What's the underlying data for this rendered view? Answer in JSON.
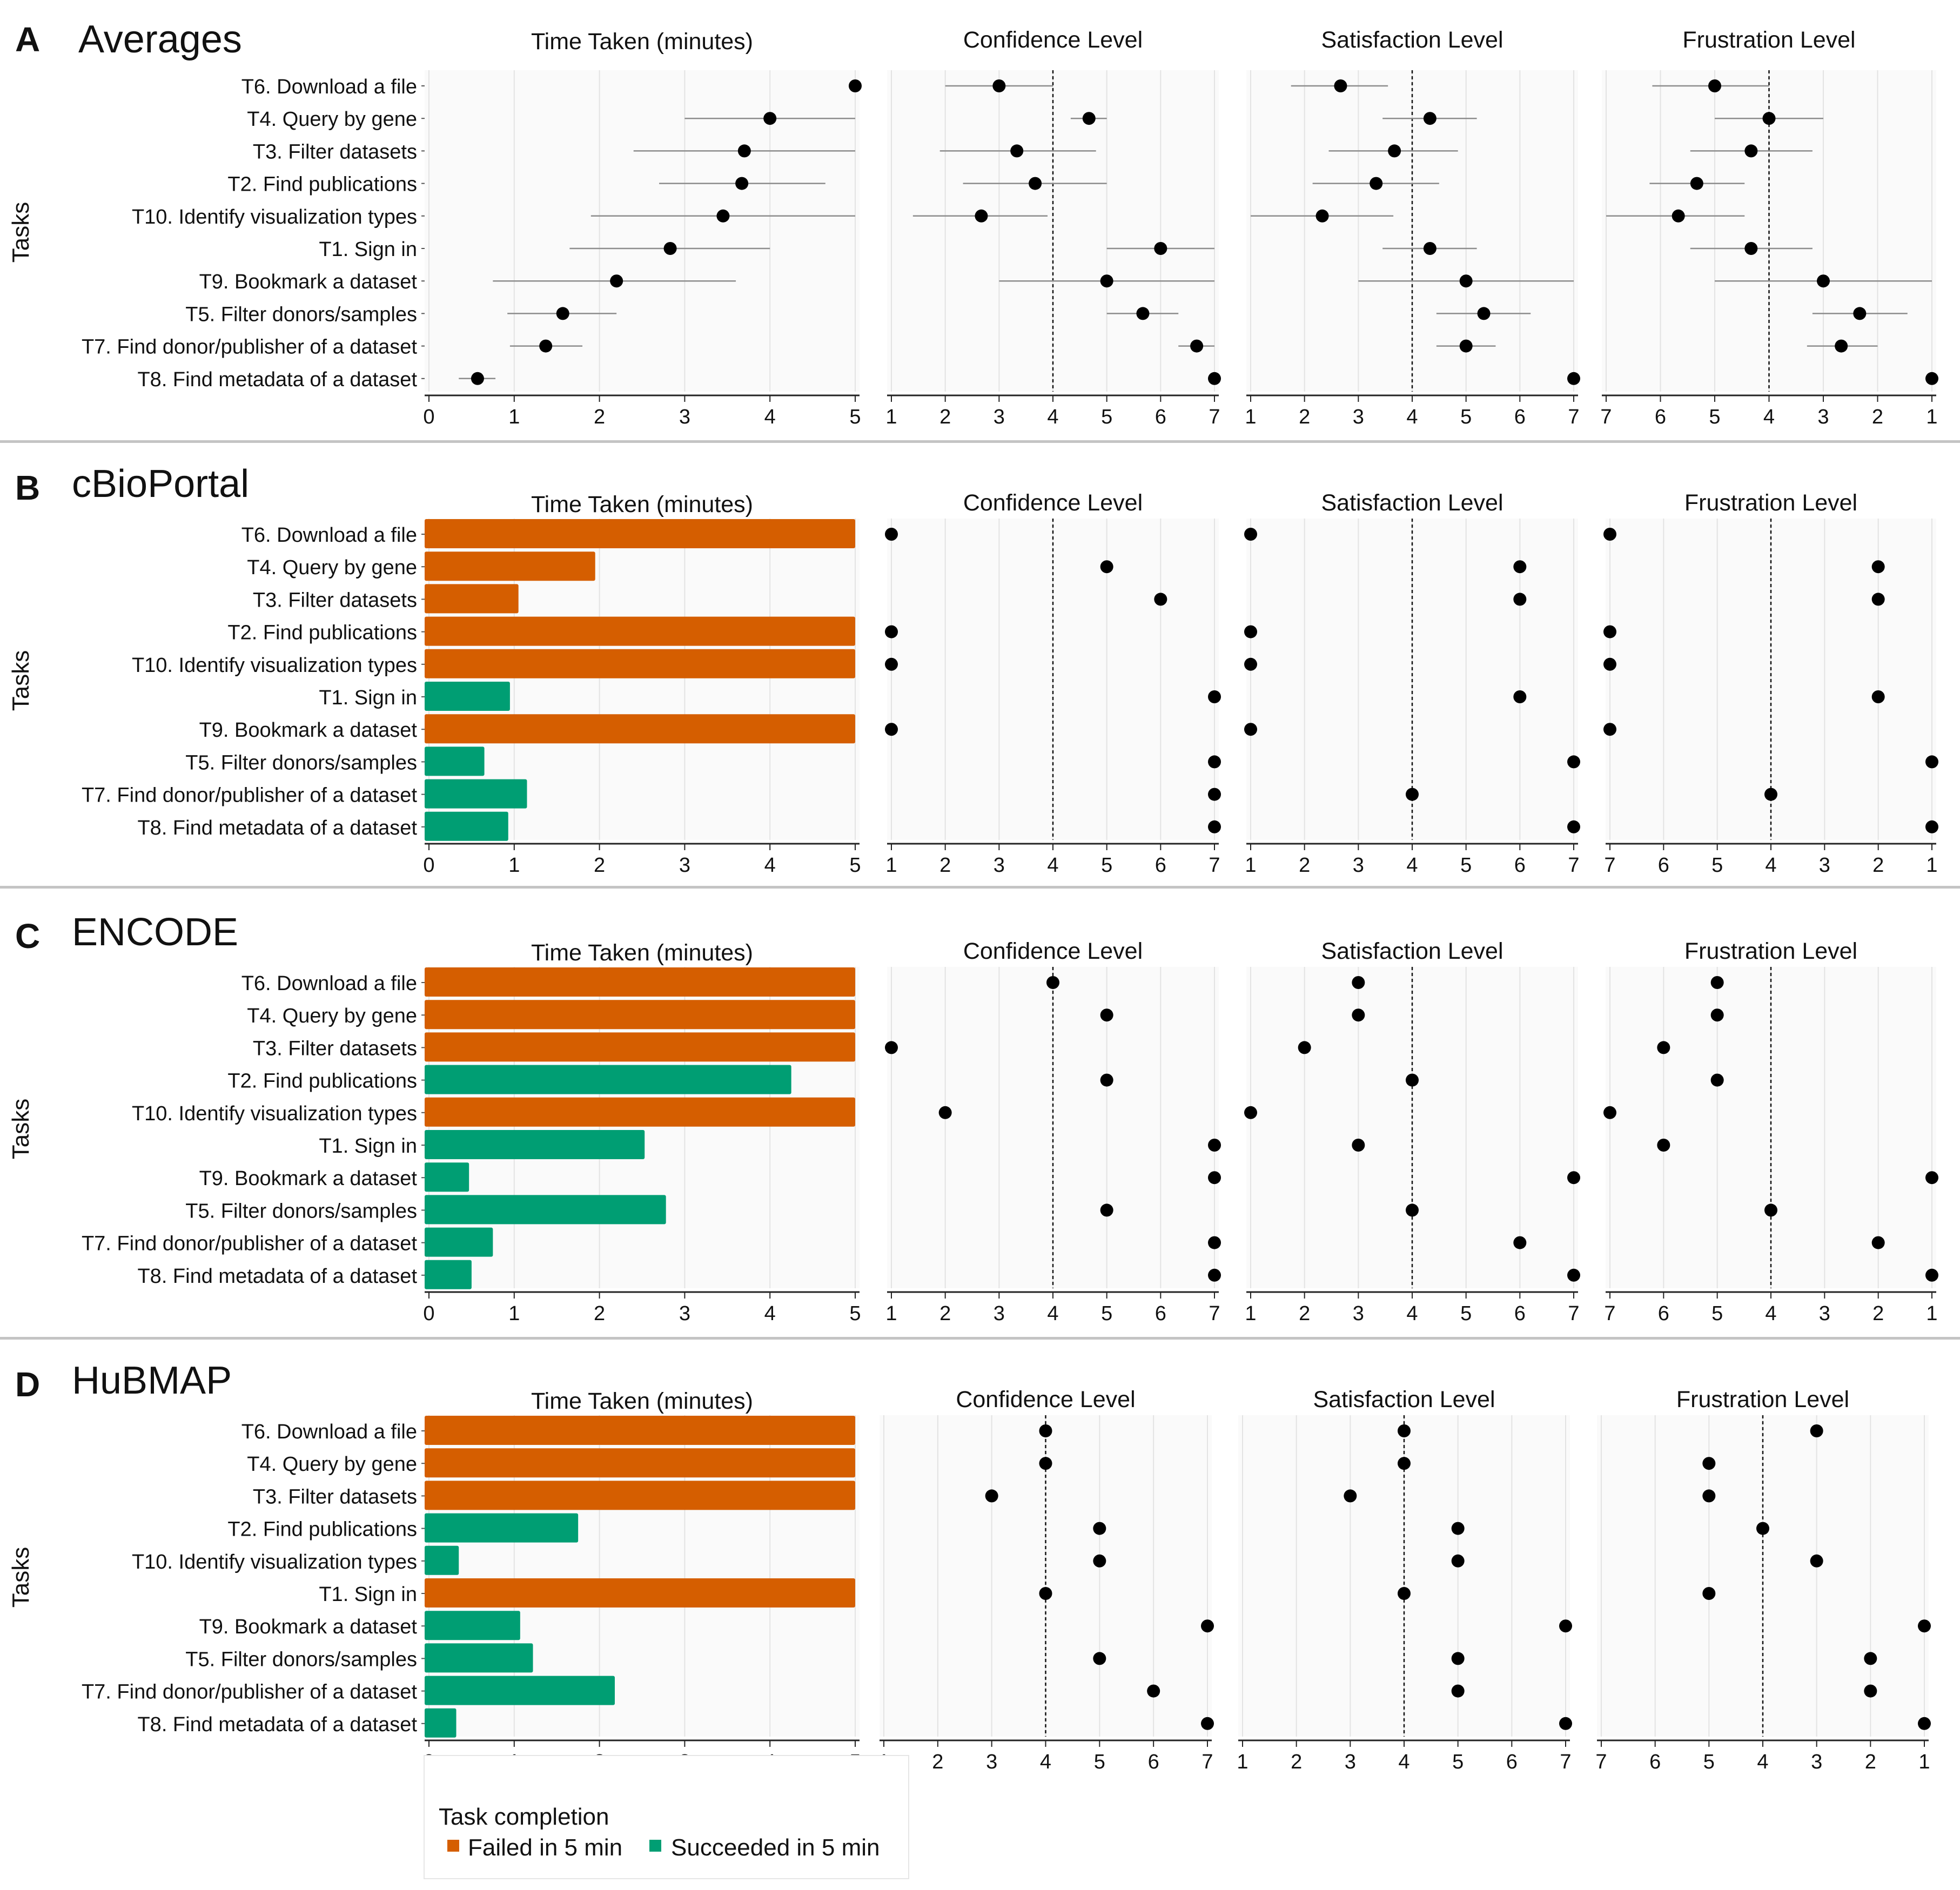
{
  "chart_data": {
    "type": "faceted-dot-and-bar",
    "ylabel": "Tasks",
    "tasks": [
      "T6. Download a file",
      "T4. Query by gene",
      "T3. Filter datasets",
      "T2. Find publications",
      "T10. Identify visualization types",
      "T1. Sign in",
      "T9. Bookmark a dataset",
      "T5. Filter donors/samples",
      "T7. Find donor/publisher of a dataset",
      "T8. Find metadata of a dataset"
    ],
    "panel_titles": {
      "time": "Time Taken (minutes)",
      "confidence": "Confidence Level",
      "satisfaction": "Satisfaction Level",
      "frustration": "Frustration Level"
    },
    "axis_ticks": {
      "time": [
        "0",
        "1",
        "2",
        "3",
        "4",
        "5"
      ],
      "likert": [
        "1",
        "2",
        "3",
        "4",
        "5",
        "6",
        "7"
      ],
      "frustration": [
        "7",
        "6",
        "5",
        "4",
        "3",
        "2",
        "1"
      ]
    },
    "time_range": [
      0,
      5
    ],
    "likert_range": [
      1,
      7
    ],
    "reference_line": 4,
    "colors": {
      "failed": "#d55e00",
      "succeeded": "#009e73",
      "dot": "#000000",
      "errorbar": "#8c8c8c"
    },
    "legend": {
      "title": "Task completion",
      "failed_label": "Failed in 5 min",
      "succeeded_label": "Succeeded in 5 min"
    },
    "sections": [
      {
        "letter": "A",
        "name": "Averages",
        "kind": "averages",
        "time": [
          {
            "mean": 5.0,
            "lo": 5.0,
            "hi": 5.0
          },
          {
            "mean": 4.0,
            "lo": 3.0,
            "hi": 5.0
          },
          {
            "mean": 3.7,
            "lo": 2.4,
            "hi": 5.0
          },
          {
            "mean": 3.67,
            "lo": 2.7,
            "hi": 4.65
          },
          {
            "mean": 3.45,
            "lo": 1.9,
            "hi": 5.0
          },
          {
            "mean": 2.83,
            "lo": 1.65,
            "hi": 4.0
          },
          {
            "mean": 2.2,
            "lo": 0.75,
            "hi": 3.6
          },
          {
            "mean": 1.57,
            "lo": 0.92,
            "hi": 2.2
          },
          {
            "mean": 1.37,
            "lo": 0.95,
            "hi": 1.8
          },
          {
            "mean": 0.57,
            "lo": 0.35,
            "hi": 0.78
          }
        ],
        "confidence": [
          {
            "mean": 3.0,
            "lo": 2.0,
            "hi": 4.0
          },
          {
            "mean": 4.67,
            "lo": 4.33,
            "hi": 5.0
          },
          {
            "mean": 3.33,
            "lo": 1.9,
            "hi": 4.8
          },
          {
            "mean": 3.67,
            "lo": 2.33,
            "hi": 5.0
          },
          {
            "mean": 2.67,
            "lo": 1.4,
            "hi": 3.9
          },
          {
            "mean": 6.0,
            "lo": 5.0,
            "hi": 7.0
          },
          {
            "mean": 5.0,
            "lo": 3.0,
            "hi": 7.0
          },
          {
            "mean": 5.67,
            "lo": 5.0,
            "hi": 6.33
          },
          {
            "mean": 6.67,
            "lo": 6.33,
            "hi": 7.0
          },
          {
            "mean": 7.0,
            "lo": 7.0,
            "hi": 7.0
          }
        ],
        "satisfaction": [
          {
            "mean": 2.67,
            "lo": 1.75,
            "hi": 3.55
          },
          {
            "mean": 4.33,
            "lo": 3.45,
            "hi": 5.2
          },
          {
            "mean": 3.67,
            "lo": 2.45,
            "hi": 4.85
          },
          {
            "mean": 3.33,
            "lo": 2.15,
            "hi": 4.5
          },
          {
            "mean": 2.33,
            "lo": 1.0,
            "hi": 3.65
          },
          {
            "mean": 4.33,
            "lo": 3.45,
            "hi": 5.2
          },
          {
            "mean": 5.0,
            "lo": 3.0,
            "hi": 7.0
          },
          {
            "mean": 5.33,
            "lo": 4.45,
            "hi": 6.2
          },
          {
            "mean": 5.0,
            "lo": 4.45,
            "hi": 5.55
          },
          {
            "mean": 7.0,
            "lo": 7.0,
            "hi": 7.0
          }
        ],
        "frustration": [
          {
            "mean": 5.0,
            "lo": 4.0,
            "hi": 6.15
          },
          {
            "mean": 4.0,
            "lo": 3.0,
            "hi": 5.0
          },
          {
            "mean": 4.33,
            "lo": 3.2,
            "hi": 5.45
          },
          {
            "mean": 5.33,
            "lo": 4.45,
            "hi": 6.2
          },
          {
            "mean": 5.67,
            "lo": 4.45,
            "hi": 7.0
          },
          {
            "mean": 4.33,
            "lo": 3.2,
            "hi": 5.45
          },
          {
            "mean": 3.0,
            "lo": 1.0,
            "hi": 5.0
          },
          {
            "mean": 2.33,
            "lo": 1.45,
            "hi": 3.2
          },
          {
            "mean": 2.67,
            "lo": 2.0,
            "hi": 3.3
          },
          {
            "mean": 1.0,
            "lo": 1.0,
            "hi": 1.0
          }
        ]
      },
      {
        "letter": "B",
        "name": "cBioPortal",
        "kind": "single",
        "time": [
          5.0,
          1.95,
          1.05,
          5.0,
          5.0,
          0.95,
          5.0,
          0.65,
          1.15,
          0.93
        ],
        "status": [
          "failed",
          "failed",
          "failed",
          "failed",
          "failed",
          "succeeded",
          "failed",
          "succeeded",
          "succeeded",
          "succeeded"
        ],
        "confidence": [
          1,
          5,
          6,
          1,
          1,
          7,
          1,
          7,
          7,
          7
        ],
        "satisfaction": [
          1,
          6,
          6,
          1,
          1,
          6,
          1,
          7,
          4,
          7
        ],
        "frustration": [
          7,
          2,
          2,
          7,
          7,
          2,
          7,
          1,
          4,
          1
        ]
      },
      {
        "letter": "C",
        "name": "ENCODE",
        "kind": "single",
        "time": [
          5.0,
          5.0,
          5.0,
          4.25,
          5.0,
          2.53,
          0.47,
          2.78,
          0.75,
          0.5
        ],
        "status": [
          "failed",
          "failed",
          "failed",
          "succeeded",
          "failed",
          "succeeded",
          "succeeded",
          "succeeded",
          "succeeded",
          "succeeded"
        ],
        "confidence": [
          4,
          5,
          1,
          5,
          2,
          7,
          7,
          5,
          7,
          7
        ],
        "satisfaction": [
          3,
          3,
          2,
          4,
          1,
          3,
          7,
          4,
          6,
          7
        ],
        "frustration": [
          5,
          5,
          6,
          5,
          7,
          6,
          1,
          4,
          2,
          1
        ]
      },
      {
        "letter": "D",
        "name": "HuBMAP",
        "kind": "single",
        "time": [
          5.0,
          5.0,
          5.0,
          1.75,
          0.35,
          5.0,
          1.07,
          1.22,
          2.18,
          0.32
        ],
        "status": [
          "failed",
          "failed",
          "failed",
          "succeeded",
          "succeeded",
          "failed",
          "succeeded",
          "succeeded",
          "succeeded",
          "succeeded"
        ],
        "confidence": [
          4,
          4,
          3,
          5,
          5,
          4,
          7,
          5,
          6,
          7
        ],
        "satisfaction": [
          4,
          4,
          3,
          5,
          5,
          4,
          7,
          5,
          5,
          7
        ],
        "frustration": [
          3,
          5,
          5,
          4,
          3,
          5,
          1,
          2,
          2,
          1
        ]
      }
    ]
  }
}
